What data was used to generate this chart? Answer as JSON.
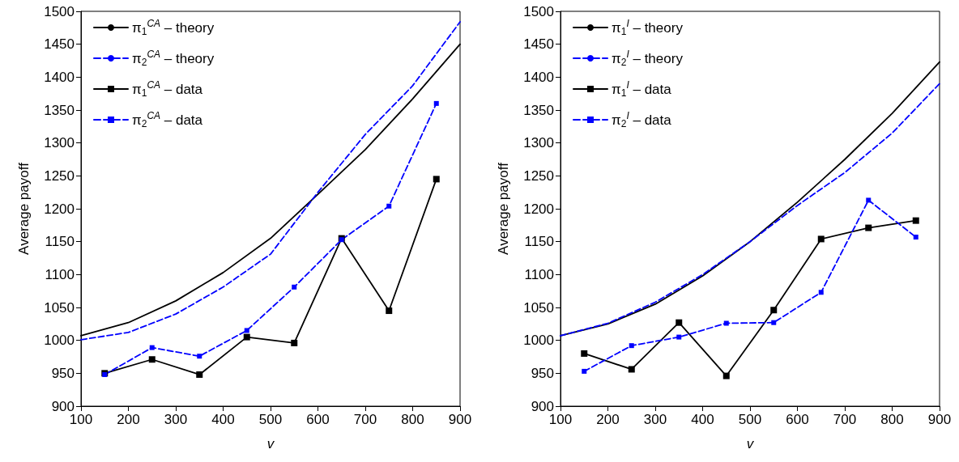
{
  "chart_data": [
    {
      "type": "line",
      "xlabel": "v",
      "ylabel": "Average payoff",
      "xlim": [
        100,
        900
      ],
      "ylim": [
        900,
        1500
      ],
      "xticks": [
        100,
        200,
        300,
        400,
        500,
        600,
        700,
        800,
        900
      ],
      "yticks": [
        900,
        950,
        1000,
        1050,
        1100,
        1150,
        1200,
        1250,
        1300,
        1350,
        1400,
        1450,
        1500
      ],
      "legend": "top left",
      "series": [
        {
          "name": "π$_{1}$$^{CA}$ – theory",
          "color": "#000000",
          "marker": "none",
          "line_style": "solid",
          "x": [
            100,
            200,
            300,
            400,
            500,
            600,
            700,
            800,
            900
          ],
          "values": [
            1007,
            1027,
            1060,
            1103,
            1155,
            1222,
            1290,
            1367,
            1450
          ]
        },
        {
          "name": "π$_{2}$$^{CA}$ – theory",
          "color": "#0000ff",
          "marker": "none",
          "line_style": "dashed",
          "x": [
            100,
            200,
            300,
            400,
            500,
            600,
            700,
            800,
            900
          ],
          "values": [
            1001,
            1012,
            1040,
            1081,
            1131,
            1225,
            1313,
            1387,
            1484
          ]
        },
        {
          "name": "π$_{1}$$^{CA}$ – data",
          "color": "#000000",
          "marker": "square",
          "line_style": "solid",
          "x": [
            150,
            250,
            350,
            450,
            550,
            650,
            750,
            850
          ],
          "values": [
            950,
            971,
            948,
            1005,
            996,
            1155,
            1045,
            1245
          ]
        },
        {
          "name": "π$_{2}$$^{CA}$ – data",
          "color": "#0000ff",
          "marker": "square",
          "line_style": "dashed",
          "x": [
            150,
            250,
            350,
            450,
            550,
            650,
            750,
            850
          ],
          "values": [
            948,
            989,
            976,
            1015,
            1081,
            1153,
            1204,
            1360
          ]
        }
      ]
    },
    {
      "type": "line",
      "xlabel": "v",
      "ylabel": "Average payoff",
      "xlim": [
        100,
        900
      ],
      "ylim": [
        900,
        1500
      ],
      "xticks": [
        100,
        200,
        300,
        400,
        500,
        600,
        700,
        800,
        900
      ],
      "yticks": [
        900,
        950,
        1000,
        1050,
        1100,
        1150,
        1200,
        1250,
        1300,
        1350,
        1400,
        1450,
        1500
      ],
      "legend": "top left",
      "series": [
        {
          "name": "π$_{1}$$^{I}$ – theory",
          "color": "#000000",
          "marker": "none",
          "line_style": "solid",
          "x": [
            100,
            200,
            300,
            400,
            500,
            600,
            700,
            800,
            900
          ],
          "values": [
            1007,
            1025,
            1055,
            1098,
            1150,
            1210,
            1275,
            1345,
            1423
          ]
        },
        {
          "name": "π$_{2}$$^{I}$ – theory",
          "color": "#0000ff",
          "marker": "none",
          "line_style": "dashed",
          "x": [
            100,
            200,
            300,
            400,
            500,
            600,
            700,
            800,
            900
          ],
          "values": [
            1007,
            1026,
            1058,
            1100,
            1150,
            1205,
            1255,
            1315,
            1390
          ]
        },
        {
          "name": "π$_{1}$$^{I}$ – data",
          "color": "#000000",
          "marker": "square",
          "line_style": "solid",
          "x": [
            150,
            250,
            350,
            450,
            550,
            650,
            750,
            850
          ],
          "values": [
            980,
            956,
            1027,
            946,
            1046,
            1154,
            1171,
            1182
          ]
        },
        {
          "name": "π$_{2}$$^{I}$ – data",
          "color": "#0000ff",
          "marker": "square",
          "line_style": "dashed",
          "x": [
            150,
            250,
            350,
            450,
            550,
            650,
            750,
            850
          ],
          "values": [
            953,
            992,
            1005,
            1026,
            1027,
            1073,
            1213,
            1157
          ]
        }
      ]
    }
  ]
}
